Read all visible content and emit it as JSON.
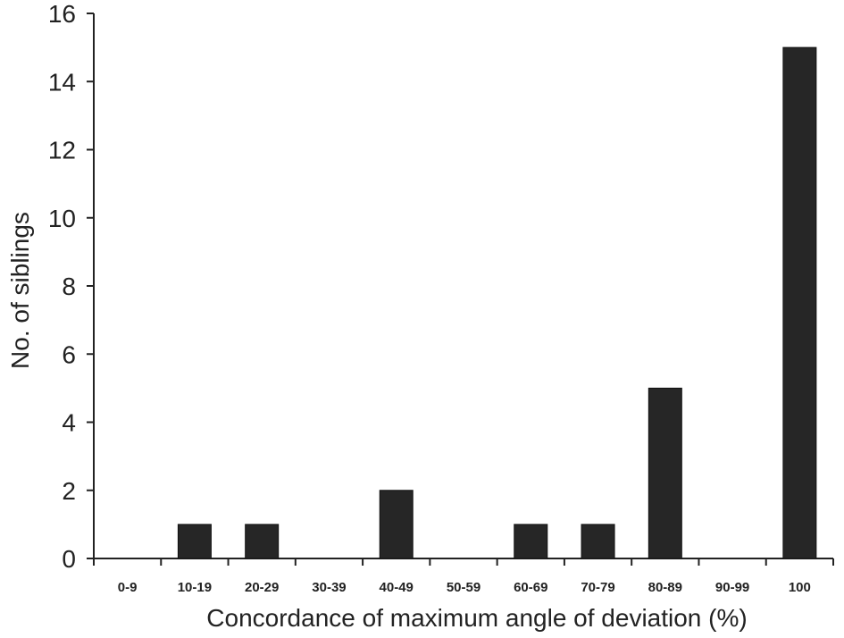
{
  "chart_data": {
    "type": "bar",
    "title": "",
    "xlabel": "Concordance of maximum angle of deviation (%)",
    "ylabel": "No. of siblings",
    "categories": [
      "0-9",
      "10-19",
      "20-29",
      "30-39",
      "40-49",
      "50-59",
      "60-69",
      "70-79",
      "80-89",
      "90-99",
      "100"
    ],
    "values": [
      0,
      1,
      1,
      0,
      2,
      0,
      1,
      1,
      5,
      0,
      15
    ],
    "ylim": [
      0,
      16
    ],
    "yticks": [
      0,
      2,
      4,
      6,
      8,
      10,
      12,
      14,
      16
    ],
    "grid": false,
    "legend": "none",
    "bar_color": "#262626"
  }
}
